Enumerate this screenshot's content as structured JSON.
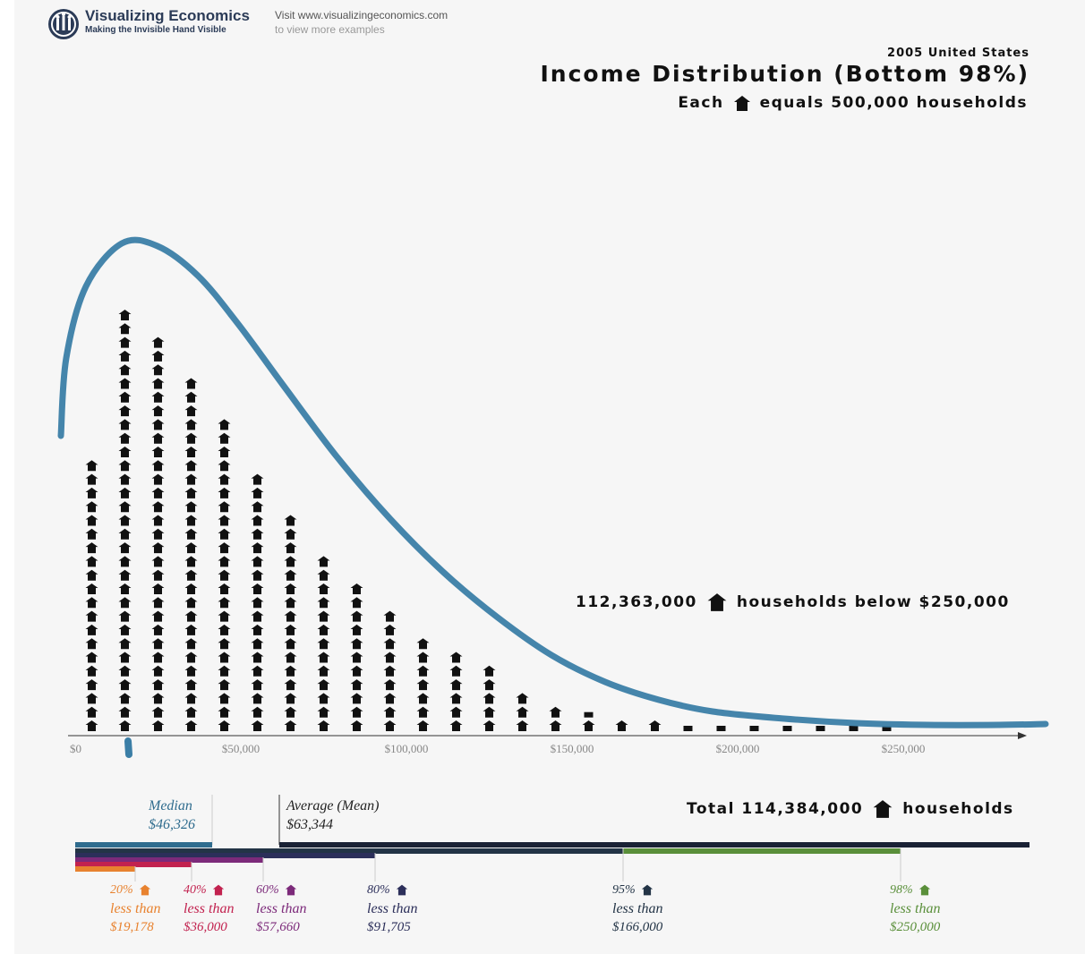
{
  "brand": {
    "name": "Visualizing Economics",
    "tagline": "Making the Invisible Hand Visible",
    "visit_line1": "Visit www.visualizingeconomics.com",
    "visit_line2": "to view more examples"
  },
  "header": {
    "subtitle": "2005 United States",
    "title": "Income Distribution (Bottom 98%)",
    "each_prefix": "Each",
    "each_suffix": "equals 500,000 households"
  },
  "stats": {
    "below_value": "112,363,000",
    "below_text": "households below $250,000",
    "total_prefix": "Total 114,384,000",
    "total_text": "households"
  },
  "markers": {
    "median_label": "Median",
    "median_value": "$46,326",
    "mean_label": "Average (Mean)",
    "mean_value": "$63,344"
  },
  "percentiles": [
    {
      "pct": "20%",
      "text": "less than",
      "value": "$19,178",
      "color": "#e8822f"
    },
    {
      "pct": "40%",
      "text": "less than",
      "value": "$36,000",
      "color": "#c2224f"
    },
    {
      "pct": "60%",
      "text": "less than",
      "value": "$57,660",
      "color": "#7c2a7a"
    },
    {
      "pct": "80%",
      "text": "less than",
      "value": "$91,705",
      "color": "#2c2f5a"
    },
    {
      "pct": "95%",
      "text": "less than",
      "value": "$166,000",
      "color": "#233446"
    },
    {
      "pct": "98%",
      "text": "less than",
      "value": "$250,000",
      "color": "#5a8f3a"
    }
  ],
  "colors": {
    "icon": "#111111",
    "curve": "#3b7ea6",
    "axis": "#333333",
    "median_bar": "#2f6c8e",
    "total_bar": "#1a2235"
  },
  "chart_data": {
    "type": "bar",
    "title": "Income Distribution (Bottom 98%)",
    "unit": "households (each icon = 500,000)",
    "x_ticks": [
      "$0",
      "$50,000",
      "$100,000",
      "$150,000",
      "$200,000",
      "$250,000"
    ],
    "xlim": [
      0,
      250000
    ],
    "bin_width": 10000,
    "series": [
      {
        "name": "",
        "bin_start": [
          0,
          10000,
          20000,
          30000,
          40000,
          50000,
          60000,
          70000,
          80000,
          90000,
          100000,
          110000,
          120000,
          130000,
          140000,
          150000,
          160000,
          170000,
          180000,
          190000,
          200000,
          210000,
          220000,
          230000,
          240000
        ],
        "values": [
          10000000,
          15500000,
          14500000,
          13000000,
          11500000,
          9500000,
          8000000,
          6500000,
          5500000,
          4500000,
          3500000,
          3000000,
          2500000,
          1500000,
          1000000,
          750000,
          500000,
          500000,
          250000,
          250000,
          250000,
          250000,
          250000,
          250000,
          250000
        ]
      }
    ]
  }
}
